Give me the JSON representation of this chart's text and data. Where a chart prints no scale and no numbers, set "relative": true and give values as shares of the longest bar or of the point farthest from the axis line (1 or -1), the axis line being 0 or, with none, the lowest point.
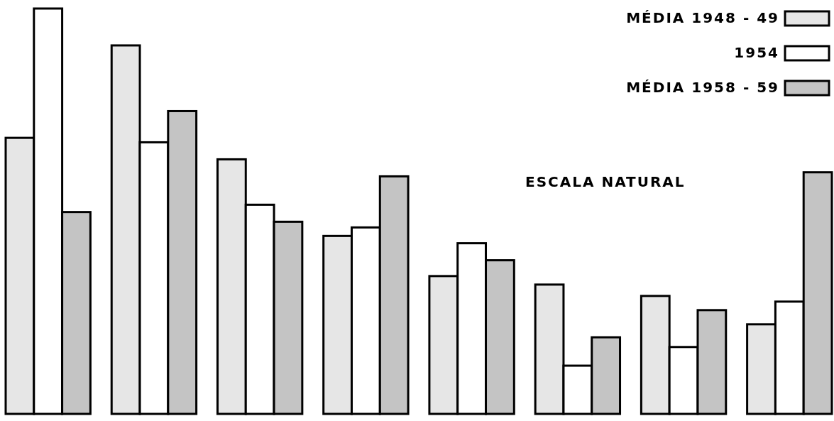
{
  "chart_data": {
    "type": "bar",
    "relative": true,
    "categories": [
      null,
      null,
      null,
      null,
      null,
      null,
      null,
      null
    ],
    "series": [
      {
        "name": "MÉDIA 1948 - 49",
        "color": "#e6e6e6",
        "values": [
          0.681,
          0.909,
          0.628,
          0.439,
          0.34,
          0.319,
          0.291,
          0.221
        ]
      },
      {
        "name": "1954",
        "color": "#ffffff",
        "values": [
          1,
          0.67,
          0.516,
          0.46,
          0.421,
          0.119,
          0.165,
          0.277
        ]
      },
      {
        "name": "MÉDIA 1958 - 59",
        "color": "#c4c4c4",
        "values": [
          0.498,
          0.747,
          0.474,
          0.586,
          0.379,
          0.189,
          0.256,
          0.596
        ]
      }
    ],
    "annotations": [
      "ESCALA NATURAL"
    ],
    "legend": "top right"
  }
}
